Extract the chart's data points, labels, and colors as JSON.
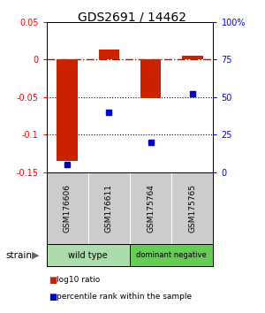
{
  "title": "GDS2691 / 14462",
  "samples": [
    "GSM176606",
    "GSM176611",
    "GSM175764",
    "GSM175765"
  ],
  "log10_ratio": [
    -0.135,
    0.013,
    -0.052,
    0.005
  ],
  "percentile_rank": [
    5,
    40,
    20,
    52
  ],
  "groups": [
    {
      "label": "wild type",
      "samples": [
        0,
        1
      ],
      "color": "#aaddaa"
    },
    {
      "label": "dominant negative",
      "samples": [
        2,
        3
      ],
      "color": "#66cc55"
    }
  ],
  "ylim_left": [
    -0.15,
    0.05
  ],
  "ylim_right": [
    0,
    100
  ],
  "yticks_left": [
    -0.15,
    -0.1,
    -0.05,
    0.0,
    0.05
  ],
  "yticks_right": [
    0,
    25,
    50,
    75,
    100
  ],
  "ytick_labels_left": [
    "-0.15",
    "-0.1",
    "-0.05",
    "0",
    "0.05"
  ],
  "ytick_labels_right": [
    "0",
    "25",
    "50",
    "75",
    "100%"
  ],
  "bar_color": "#cc2200",
  "dot_color": "#0000cc",
  "hline_color": "#cc0000",
  "dotted_line_color": "#000000",
  "bar_width": 0.5,
  "strain_label": "strain",
  "legend_bar_label": "log10 ratio",
  "legend_dot_label": "percentile rank within the sample",
  "bg_color": "#ffffff",
  "plot_bg_color": "#ffffff",
  "label_row_color": "#cccccc",
  "title_fontsize": 10
}
